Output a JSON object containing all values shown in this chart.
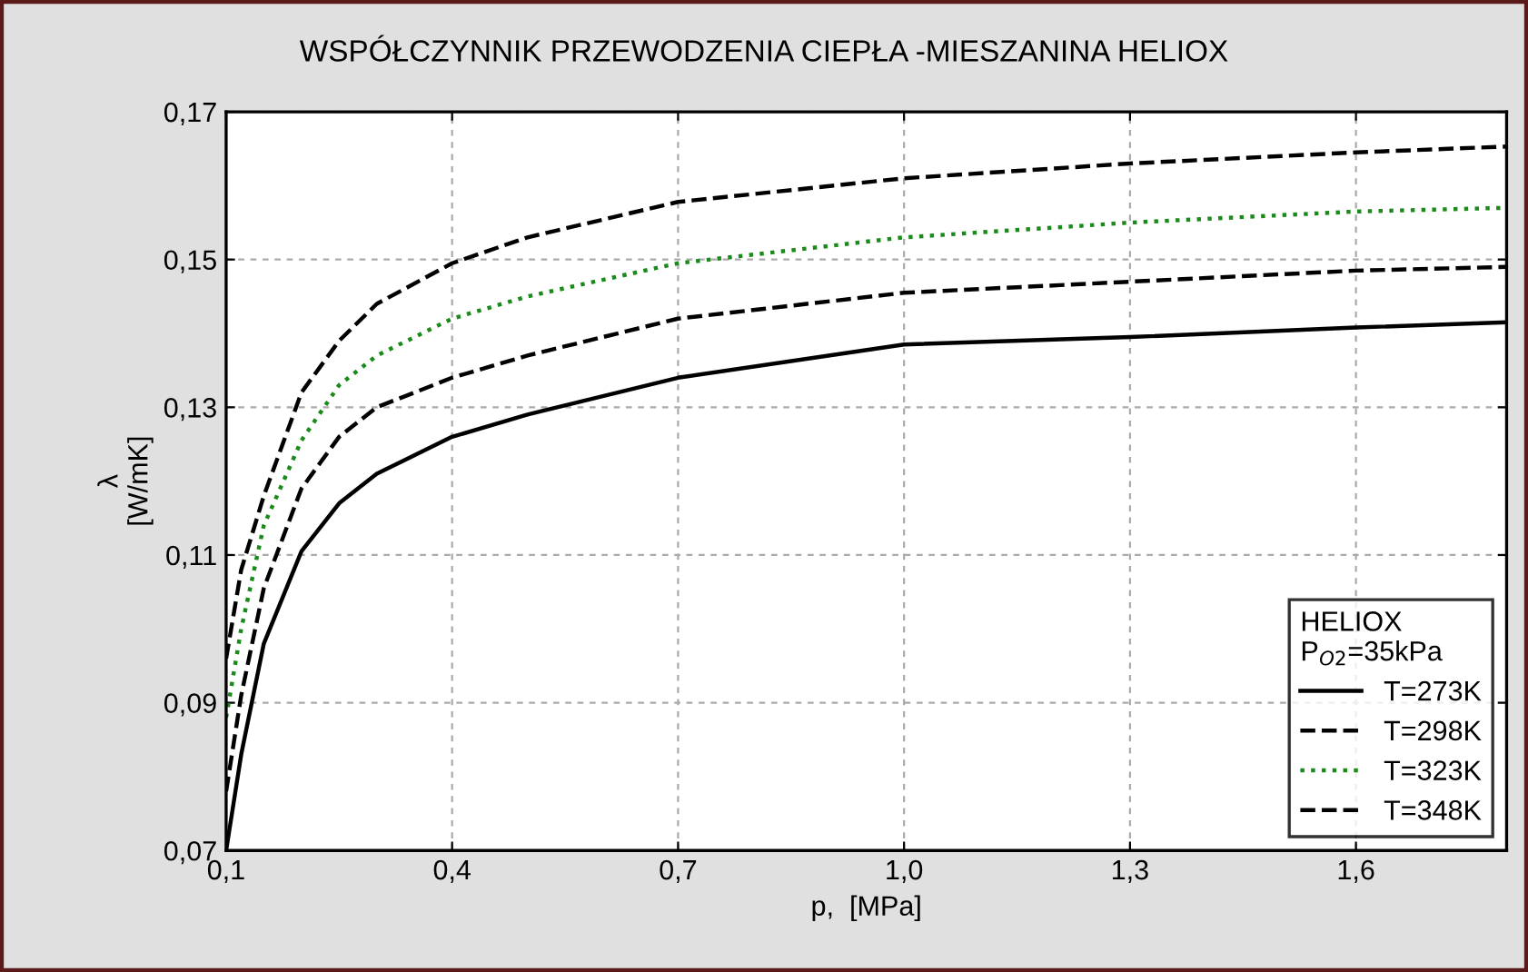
{
  "chart_data": {
    "type": "line",
    "title": "WSPÓŁCZYNNIK PRZEWODZENIA CIEPŁA -MIESZANINA HELIOX",
    "xlabel": "p,  [MPa]",
    "ylabel": "λ\n[W/mK]",
    "legend_title": "HELIOX\nP$_{O2}$=35kPa",
    "x": [
      0.1,
      0.12,
      0.15,
      0.2,
      0.25,
      0.3,
      0.4,
      0.5,
      0.7,
      1.0,
      1.3,
      1.6,
      1.8
    ],
    "series": [
      {
        "name": "T=273K",
        "color": "#000000",
        "line_style": "solid",
        "values": [
          0.07,
          0.083,
          0.098,
          0.1105,
          0.117,
          0.121,
          0.126,
          0.129,
          0.134,
          0.1385,
          0.1395,
          0.1408,
          0.1415
        ]
      },
      {
        "name": "T=298K",
        "color": "#000000",
        "line_style": "dashed",
        "values": [
          0.078,
          0.091,
          0.1055,
          0.119,
          0.126,
          0.13,
          0.134,
          0.137,
          0.142,
          0.1455,
          0.147,
          0.1485,
          0.149
        ]
      },
      {
        "name": "T=323K",
        "color": "#1a8a1a",
        "line_style": "dotted",
        "values": [
          0.088,
          0.1,
          0.114,
          0.1255,
          0.133,
          0.137,
          0.142,
          0.145,
          0.1495,
          0.153,
          0.155,
          0.1565,
          0.157
        ]
      },
      {
        "name": "T=348K",
        "color": "#000000",
        "line_style": "dashed",
        "values": [
          0.096,
          0.108,
          0.118,
          0.132,
          0.139,
          0.144,
          0.1495,
          0.153,
          0.1578,
          0.161,
          0.163,
          0.1645,
          0.1653
        ]
      }
    ],
    "xlim": [
      0.1,
      1.8
    ],
    "ylim": [
      0.07,
      0.17
    ],
    "xticks": [
      {
        "value": 0.1,
        "label": "0,1"
      },
      {
        "value": 0.4,
        "label": "0,4"
      },
      {
        "value": 0.7,
        "label": "0,7"
      },
      {
        "value": 1.0,
        "label": "1,0"
      },
      {
        "value": 1.3,
        "label": "1,3"
      },
      {
        "value": 1.6,
        "label": "1,6"
      }
    ],
    "yticks": [
      {
        "value": 0.07,
        "label": "0,07"
      },
      {
        "value": 0.09,
        "label": "0,09"
      },
      {
        "value": 0.11,
        "label": "0,11"
      },
      {
        "value": 0.13,
        "label": "0,13"
      },
      {
        "value": 0.15,
        "label": "0,15"
      },
      {
        "value": 0.17,
        "label": "0,17"
      }
    ],
    "grid": true,
    "legend": "bottom right"
  }
}
